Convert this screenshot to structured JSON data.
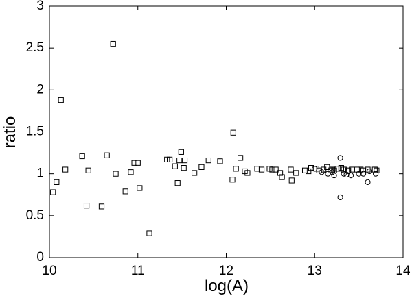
{
  "chart_data": {
    "type": "scatter",
    "xlabel": "log(A)",
    "ylabel": "ratio",
    "xlim": [
      10,
      14
    ],
    "xticks": [
      10,
      11,
      12,
      13,
      14
    ],
    "ylim": [
      0,
      3
    ],
    "yticks": [
      0,
      0.5,
      1,
      1.5,
      2,
      2.5,
      3
    ],
    "grid": false,
    "series": [
      {
        "marker": "square",
        "color": "#000000",
        "x": [
          10.04,
          10.08,
          10.13,
          10.18,
          10.37,
          10.44,
          10.42,
          10.59,
          10.65,
          10.72,
          10.75,
          10.86,
          10.92,
          10.96,
          11.0,
          11.02,
          11.13,
          11.33,
          11.36,
          11.42,
          11.47,
          11.45,
          11.49,
          11.52,
          11.53,
          11.64,
          11.72,
          11.8,
          11.93,
          12.08,
          12.07,
          12.11,
          12.16,
          12.21,
          12.24,
          12.35,
          12.4,
          12.49,
          12.52,
          12.56,
          12.61,
          12.63,
          12.73,
          12.74,
          12.79,
          12.89,
          12.93,
          12.96,
          13.02,
          13.05,
          13.1,
          13.14,
          13.18,
          13.2,
          13.22,
          13.26,
          13.3,
          13.33,
          13.38,
          13.42,
          13.48,
          13.52,
          13.55,
          13.6,
          13.68,
          13.7
        ],
        "y": [
          0.78,
          0.9,
          1.88,
          1.05,
          1.21,
          1.04,
          0.62,
          0.61,
          1.22,
          2.55,
          1.0,
          0.79,
          1.02,
          1.13,
          1.13,
          0.83,
          0.29,
          1.17,
          1.17,
          1.09,
          1.16,
          0.89,
          1.26,
          1.07,
          1.16,
          1.01,
          1.08,
          1.16,
          1.15,
          1.49,
          0.93,
          1.06,
          1.19,
          1.03,
          1.01,
          1.06,
          1.05,
          1.06,
          1.05,
          1.05,
          1.01,
          0.96,
          1.05,
          0.92,
          1.01,
          1.04,
          1.03,
          1.07,
          1.06,
          1.04,
          1.05,
          1.08,
          1.04,
          1.05,
          1.04,
          1.06,
          1.07,
          1.05,
          1.04,
          1.05,
          1.05,
          1.05,
          1.04,
          1.05,
          1.05,
          1.04
        ]
      },
      {
        "marker": "circle",
        "color": "#000000",
        "x": [
          13.0,
          13.08,
          13.15,
          13.2,
          13.22,
          13.29,
          13.29,
          13.33,
          13.36,
          13.38,
          13.41,
          13.5,
          13.55,
          13.6,
          13.62,
          13.69
        ],
        "y": [
          1.06,
          1.02,
          1.0,
          1.02,
          0.98,
          1.19,
          0.72,
          1.0,
          0.99,
          1.03,
          0.98,
          1.0,
          1.0,
          0.9,
          1.03,
          1.0
        ]
      }
    ]
  }
}
